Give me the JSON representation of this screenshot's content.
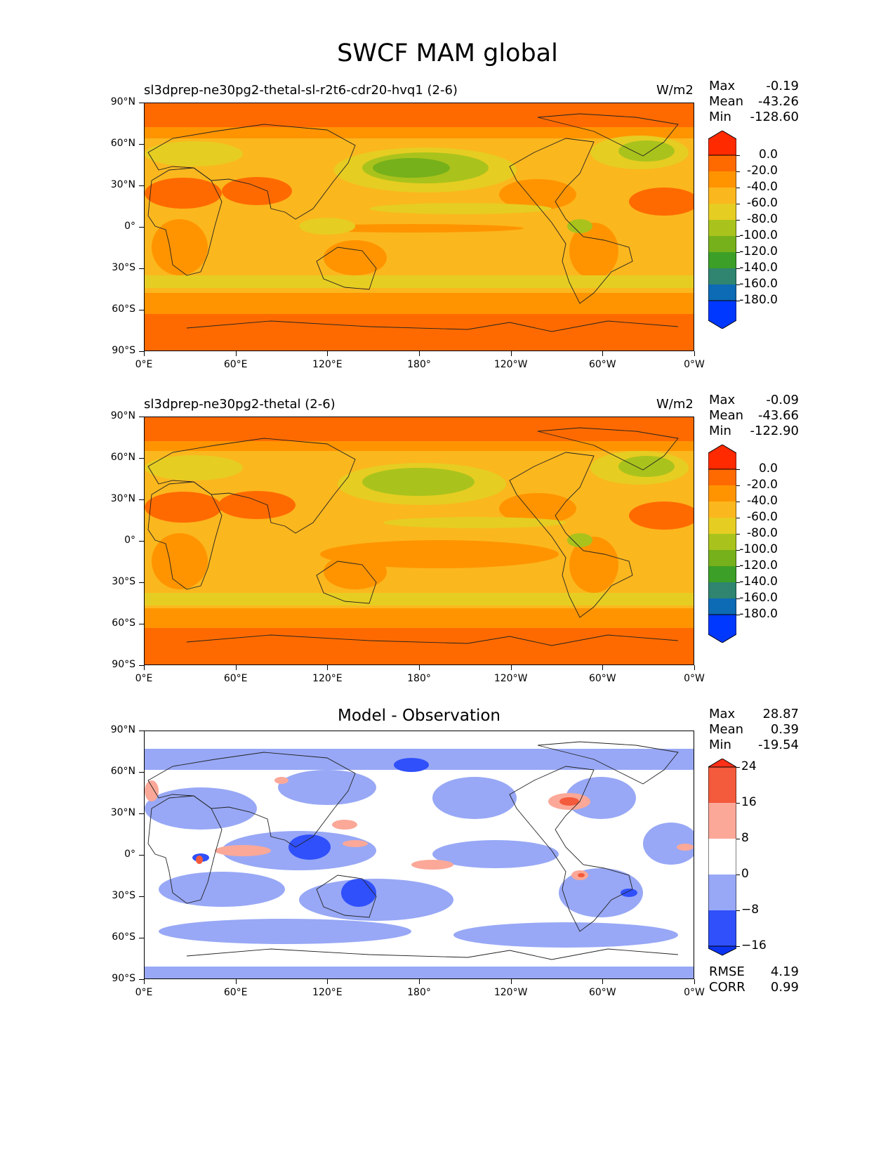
{
  "figure": {
    "title": "SWCF MAM global"
  },
  "axes": {
    "lat_ticks": [
      "90°N",
      "60°N",
      "30°N",
      "0°",
      "30°S",
      "60°S",
      "90°S"
    ],
    "lon_ticks": [
      "0°E",
      "60°E",
      "120°E",
      "180°",
      "120°W",
      "60°W",
      "0°W"
    ]
  },
  "panels": [
    {
      "title": "sl3dprep-ne30pg2-thetal-sl-r2t6-cdr20-hvq1 (2-6)",
      "units": "W/m2",
      "stats": {
        "max_label": "Max",
        "max": "-0.19",
        "mean_label": "Mean",
        "mean": "-43.26",
        "min_label": "Min",
        "min": "-128.60"
      },
      "colorbar_labels": [
        "0.0",
        "-20.0",
        "-40.0",
        "-60.0",
        "-80.0",
        "-100.0",
        "-120.0",
        "-140.0",
        "-160.0",
        "-180.0"
      ]
    },
    {
      "title": "sl3dprep-ne30pg2-thetal (2-6)",
      "units": "W/m2",
      "stats": {
        "max_label": "Max",
        "max": "-0.09",
        "mean_label": "Mean",
        "mean": "-43.66",
        "min_label": "Min",
        "min": "-122.90"
      },
      "colorbar_labels": [
        "0.0",
        "-20.0",
        "-40.0",
        "-60.0",
        "-80.0",
        "-100.0",
        "-120.0",
        "-140.0",
        "-160.0",
        "-180.0"
      ]
    },
    {
      "title": "Model - Observation",
      "stats": {
        "max_label": "Max",
        "max": "28.87",
        "mean_label": "Mean",
        "mean": "0.39",
        "min_label": "Min",
        "min": "-19.54"
      },
      "colorbar_labels": [
        "24",
        "16",
        "8",
        "0",
        "−8",
        "−16"
      ],
      "metrics": {
        "rmse_label": "RMSE",
        "rmse": "4.19",
        "corr_label": "CORR",
        "corr": "0.99"
      }
    }
  ],
  "chart_data": [
    {
      "type": "heatmap",
      "title": "sl3dprep-ne30pg2-thetal-sl-r2t6-cdr20-hvq1 (2-6)",
      "variable": "SWCF",
      "season": "MAM",
      "units": "W/m2",
      "x_range": [
        0,
        360
      ],
      "y_range": [
        -90,
        90
      ],
      "levels": [
        0,
        -20,
        -40,
        -60,
        -80,
        -100,
        -120,
        -140,
        -160,
        -180
      ],
      "colors": [
        "#ff2a00",
        "#ff6a00",
        "#ff9400",
        "#fbb71e",
        "#e6cd22",
        "#a9c31c",
        "#76b01a",
        "#3c9f27",
        "#2f8570",
        "#0d6ab4",
        "#0038ff"
      ],
      "max": -0.19,
      "mean": -43.26,
      "min": -128.6
    },
    {
      "type": "heatmap",
      "title": "sl3dprep-ne30pg2-thetal (2-6)",
      "variable": "SWCF",
      "season": "MAM",
      "units": "W/m2",
      "x_range": [
        0,
        360
      ],
      "y_range": [
        -90,
        90
      ],
      "levels": [
        0,
        -20,
        -40,
        -60,
        -80,
        -100,
        -120,
        -140,
        -160,
        -180
      ],
      "colors": [
        "#ff2a00",
        "#ff6a00",
        "#ff9400",
        "#fbb71e",
        "#e6cd22",
        "#a9c31c",
        "#76b01a",
        "#3c9f27",
        "#2f8570",
        "#0d6ab4",
        "#0038ff"
      ],
      "max": -0.09,
      "mean": -43.66,
      "min": -122.9
    },
    {
      "type": "heatmap",
      "title": "Model - Observation",
      "x_range": [
        0,
        360
      ],
      "y_range": [
        -90,
        90
      ],
      "levels": [
        24,
        16,
        8,
        0,
        -8,
        -16
      ],
      "colors": [
        "#ff3018",
        "#f45a3c",
        "#fba898",
        "#ffffff",
        "#98a8f6",
        "#3050fb",
        "#0c34f0"
      ],
      "max": 28.87,
      "mean": 0.39,
      "min": -19.54,
      "rmse": 4.19,
      "corr": 0.99
    }
  ]
}
